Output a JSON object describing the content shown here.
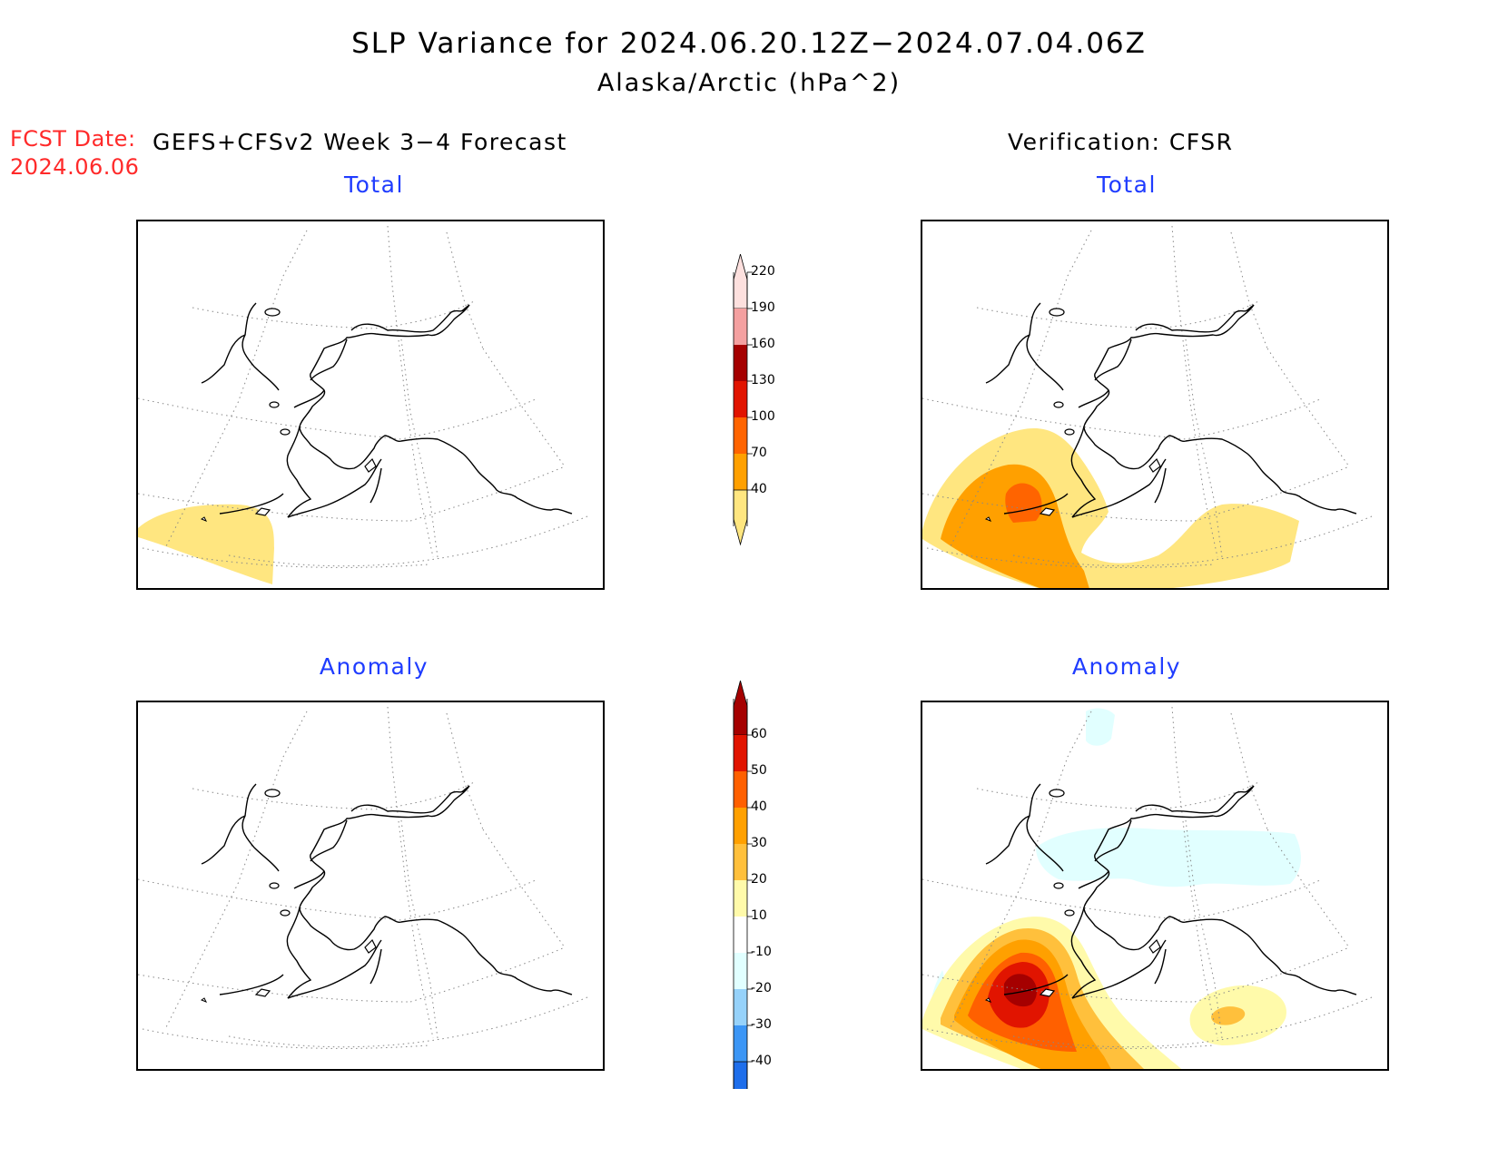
{
  "title": {
    "line1": "SLP Variance for 2024.06.20.12Z−2024.07.04.06Z",
    "line2": "Alaska/Arctic (hPa^2)"
  },
  "forecast": {
    "date_label": "FCST Date:",
    "date_value": "2024.06.06",
    "title": "GEFS+CFSv2 Week 3−4 Forecast"
  },
  "verification": {
    "title": "Verification: CFSR"
  },
  "panels": {
    "fcst_total": {
      "title": "Total"
    },
    "fcst_anomaly": {
      "title": "Anomaly"
    },
    "verif_total": {
      "title": "Total"
    },
    "verif_anomaly": {
      "title": "Anomaly"
    }
  },
  "colorbars": {
    "total": {
      "labels": [
        "40",
        "70",
        "100",
        "130",
        "160",
        "190",
        "220"
      ],
      "colors": [
        "#ffe680",
        "#ffa000",
        "#ff6400",
        "#e11400",
        "#a50000",
        "#f4a0a0",
        "#fde0de"
      ]
    },
    "anomaly": {
      "labels": [
        "-40",
        "-30",
        "-20",
        "-10",
        "10",
        "20",
        "30",
        "40",
        "50",
        "60"
      ],
      "colors": [
        "#1e6eeb",
        "#3c96f5",
        "#96d2fa",
        "#e1ffff",
        "#ffffff",
        "#fffaaa",
        "#ffc03c",
        "#ffa000",
        "#ff6000",
        "#e11400",
        "#a50000"
      ]
    }
  }
}
